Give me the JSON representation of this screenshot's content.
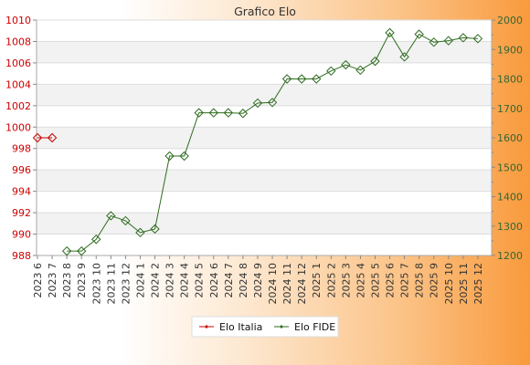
{
  "chart_data": {
    "type": "line",
    "title": "Grafico Elo",
    "categories": [
      "2023 6",
      "2023 7",
      "2023 8",
      "2023 9",
      "2023 10",
      "2023 11",
      "2023 12",
      "2024 1",
      "2024 2",
      "2024 3",
      "2024 4",
      "2024 5",
      "2024 6",
      "2024 7",
      "2024 8",
      "2024 9",
      "2024 10",
      "2024 11",
      "2024 12",
      "2025 1",
      "2025 2",
      "2025 3",
      "2025 4",
      "2025 5",
      "2025 6",
      "2025 7",
      "2025 8",
      "2025 9",
      "2025 10",
      "2025 11",
      "2025 12"
    ],
    "ylim_left": [
      988,
      1010
    ],
    "yticks_left": [
      988,
      990,
      992,
      994,
      996,
      998,
      1000,
      1002,
      1004,
      1006,
      1008,
      1010
    ],
    "ylim_right": [
      1200,
      2000
    ],
    "yticks_right": [
      1200,
      1300,
      1400,
      1500,
      1600,
      1700,
      1800,
      1900,
      2000
    ],
    "grid": true,
    "legend_position": "bottom-center",
    "series": [
      {
        "name": "Elo Italia",
        "axis": "left",
        "color": "#cc0000",
        "values": [
          999,
          999,
          null,
          null,
          null,
          null,
          null,
          null,
          null,
          null,
          null,
          null,
          null,
          null,
          null,
          null,
          null,
          null,
          null,
          null,
          null,
          null,
          null,
          null,
          null,
          null,
          null,
          null,
          null,
          null,
          null
        ]
      },
      {
        "name": "Elo FIDE",
        "axis": "right",
        "color": "#2e6b1f",
        "values": [
          null,
          null,
          1215,
          1215,
          1255,
          1335,
          1318,
          1278,
          1290,
          1538,
          1538,
          1685,
          1685,
          1685,
          1683,
          1718,
          1720,
          1800,
          1800,
          1800,
          1827,
          1848,
          1830,
          1860,
          1957,
          1875,
          1952,
          1925,
          1930,
          1940,
          1937
        ]
      }
    ]
  }
}
